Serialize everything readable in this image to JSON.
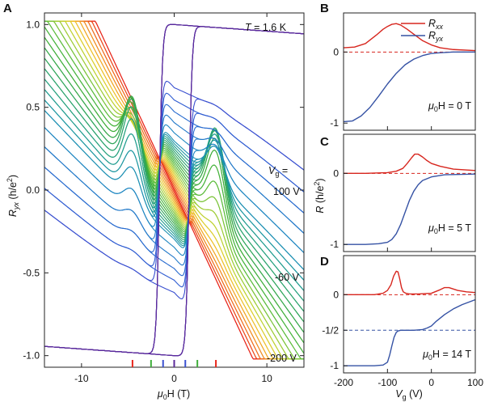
{
  "figure": {
    "background": "#ffffff",
    "axis_color": "#222222"
  },
  "chart_data": [
    {
      "panel": "A",
      "type": "line",
      "xlabel_main": "μ",
      "xlabel_sub": "0",
      "xlabel_rest": "H (T)",
      "ylabel_main": "R",
      "ylabel_sub": "yx",
      "ylabel_rest": " (h/e",
      "ylabel_sup": "2",
      "ylabel_end": ")",
      "xlim": [
        -14,
        14
      ],
      "ylim": [
        -1.07,
        1.07
      ],
      "x_ticks": [
        -10,
        0,
        10
      ],
      "x_tick_labels": [
        "-10",
        "0",
        "10"
      ],
      "y_ticks": [
        1.0,
        0.5,
        0.0,
        -0.5,
        -1.0
      ],
      "y_tick_labels": [
        "1.0",
        "0.5",
        "0.0",
        "-0.5",
        "-1.0"
      ],
      "temperature_prefix": "T",
      "temperature_value": " = 1.6 K",
      "vg_label_main": "V",
      "vg_label_sub": "g",
      "vg_label_rest": " =",
      "curve_labels": [
        {
          "text": "100 V",
          "color": "#e8261b",
          "y": 0.0
        },
        {
          "text": "-60 V",
          "color": "#3fae3a",
          "y": -0.52
        },
        {
          "text": "-200 V",
          "color": "#5b2a9a",
          "y": -1.05
        }
      ],
      "series_vg": [
        100,
        90,
        80,
        70,
        60,
        50,
        40,
        30,
        20,
        10,
        0,
        -10,
        -20,
        -30,
        -40,
        -50,
        -60,
        -70,
        -80,
        -90,
        -100,
        -110,
        -120,
        -130,
        -140,
        -150,
        -160,
        -170,
        -180,
        -200
      ],
      "gate_range": [
        -200,
        100
      ],
      "colors": [
        "#e8261b",
        "#ec4a1c",
        "#ef6d1e",
        "#f08d22",
        "#f2a826",
        "#eec02a",
        "#dcce2e",
        "#bfd233",
        "#9ecc36",
        "#7cc43a",
        "#5cbc3c",
        "#48b43e",
        "#3fae3a",
        "#35a84a",
        "#2fa65a",
        "#2aa36c",
        "#26a17e",
        "#229d90",
        "#1f98a2",
        "#1d90b3",
        "#1e86c1",
        "#2279c9",
        "#286bcf",
        "#305dd2",
        "#3a50d0",
        "#4444c8",
        "#4d3abc",
        "#5431b0",
        "#5a2ba5",
        "#5b2a9a"
      ],
      "hysteresis": {
        "coercive_field": 1.6,
        "low_vg_threshold": -110
      },
      "tick_markers": [
        {
          "x": -4.5,
          "color": "#e8261b"
        },
        {
          "x": -2.5,
          "color": "#3fae3a"
        },
        {
          "x": -1.2,
          "color": "#3a50d0"
        },
        {
          "x": 0.0,
          "color": "#5b2a9a"
        },
        {
          "x": 1.2,
          "color": "#3a50d0"
        },
        {
          "x": 2.5,
          "color": "#3fae3a"
        },
        {
          "x": 4.5,
          "color": "#e8261b"
        }
      ]
    },
    {
      "panel": "B",
      "type": "line",
      "xlim": [
        -200,
        100
      ],
      "ylim": [
        -1.1,
        0.55
      ],
      "y_ticks": [
        0,
        -1
      ],
      "y_tick_labels": [
        "0",
        "-1"
      ],
      "field_main": "μ",
      "field_sub": "0",
      "field_rest": "H = 0 T",
      "legend": [
        {
          "main": "R",
          "sub": "xx",
          "color": "#d7261e"
        },
        {
          "main": "R",
          "sub": "yx",
          "color": "#3552a4"
        }
      ],
      "dashed_levels": [
        {
          "y": 0,
          "color": "#d7261e"
        }
      ],
      "series": [
        {
          "name": "R_xx",
          "color": "#d7261e",
          "x": [
            -200,
            -175,
            -150,
            -125,
            -110,
            -100,
            -90,
            -80,
            -70,
            -55,
            -40,
            -20,
            0,
            20,
            50,
            100
          ],
          "y": [
            0.06,
            0.07,
            0.12,
            0.24,
            0.32,
            0.36,
            0.39,
            0.4,
            0.38,
            0.32,
            0.25,
            0.16,
            0.1,
            0.06,
            0.035,
            0.02
          ]
        },
        {
          "name": "R_yx",
          "color": "#3552a4",
          "x": [
            -200,
            -180,
            -160,
            -140,
            -120,
            -100,
            -80,
            -60,
            -40,
            -20,
            0,
            20,
            50,
            100
          ],
          "y": [
            -0.98,
            -0.97,
            -0.9,
            -0.78,
            -0.62,
            -0.45,
            -0.3,
            -0.18,
            -0.1,
            -0.05,
            -0.02,
            -0.01,
            0.0,
            0.0
          ]
        }
      ]
    },
    {
      "panel": "C",
      "type": "line",
      "xlim": [
        -200,
        100
      ],
      "ylim": [
        -1.1,
        0.55
      ],
      "y_ticks": [
        0,
        -1
      ],
      "y_tick_labels": [
        "0",
        "-1"
      ],
      "ylabel_main": "R",
      "ylabel_rest": " (h/e",
      "ylabel_sup": "2",
      "ylabel_end": ")",
      "field_main": "μ",
      "field_sub": "0",
      "field_rest": "H = 5 T",
      "dashed_levels": [
        {
          "y": 0,
          "color": "#d7261e"
        }
      ],
      "series": [
        {
          "name": "R_xx",
          "color": "#d7261e",
          "x": [
            -200,
            -150,
            -100,
            -80,
            -65,
            -55,
            -45,
            -38,
            -30,
            -20,
            -10,
            0,
            20,
            50,
            100
          ],
          "y": [
            0.0,
            0.0,
            0.01,
            0.03,
            0.07,
            0.14,
            0.22,
            0.27,
            0.27,
            0.23,
            0.18,
            0.14,
            0.1,
            0.06,
            0.04
          ]
        },
        {
          "name": "R_yx",
          "color": "#3552a4",
          "x": [
            -200,
            -150,
            -120,
            -100,
            -90,
            -80,
            -70,
            -60,
            -50,
            -40,
            -30,
            -20,
            0,
            30,
            100
          ],
          "y": [
            -1.0,
            -1.0,
            -0.99,
            -0.97,
            -0.93,
            -0.85,
            -0.72,
            -0.55,
            -0.38,
            -0.25,
            -0.16,
            -0.1,
            -0.05,
            -0.02,
            -0.01
          ]
        }
      ]
    },
    {
      "panel": "D",
      "type": "line",
      "xlim": [
        -200,
        100
      ],
      "ylim": [
        -1.1,
        0.55
      ],
      "x_ticks": [
        -200,
        -100,
        0,
        100
      ],
      "x_tick_labels": [
        "-200",
        "-100",
        "0",
        "100"
      ],
      "y_ticks": [
        0,
        -0.5,
        -1
      ],
      "y_tick_labels": [
        "0",
        "-1/2",
        "-1"
      ],
      "xlabel_main": "V",
      "xlabel_sub": "g",
      "xlabel_rest": " (V)",
      "field_main": "μ",
      "field_sub": "0",
      "field_rest": "H = 14 T",
      "dashed_levels": [
        {
          "y": 0,
          "color": "#d7261e"
        },
        {
          "y": -0.5,
          "color": "#3552a4"
        }
      ],
      "series": [
        {
          "name": "R_xx",
          "color": "#d7261e",
          "x": [
            -200,
            -130,
            -110,
            -100,
            -92,
            -86,
            -80,
            -76,
            -72,
            -68,
            -64,
            -58,
            -50,
            -30,
            0,
            20,
            30,
            40,
            50,
            60,
            80,
            100
          ],
          "y": [
            0.0,
            0.0,
            0.02,
            0.06,
            0.14,
            0.26,
            0.33,
            0.32,
            0.22,
            0.1,
            0.04,
            0.02,
            0.01,
            0.01,
            0.02,
            0.07,
            0.1,
            0.1,
            0.08,
            0.06,
            0.04,
            0.03
          ]
        },
        {
          "name": "R_yx",
          "color": "#3552a4",
          "x": [
            -200,
            -130,
            -110,
            -100,
            -95,
            -90,
            -85,
            -80,
            -76,
            -70,
            -60,
            -40,
            -20,
            -10,
            0,
            10,
            30,
            50,
            70,
            100
          ],
          "y": [
            -1.0,
            -1.0,
            -0.99,
            -0.95,
            -0.85,
            -0.72,
            -0.6,
            -0.53,
            -0.51,
            -0.5,
            -0.5,
            -0.5,
            -0.49,
            -0.47,
            -0.44,
            -0.38,
            -0.28,
            -0.2,
            -0.14,
            -0.07
          ]
        }
      ]
    }
  ]
}
